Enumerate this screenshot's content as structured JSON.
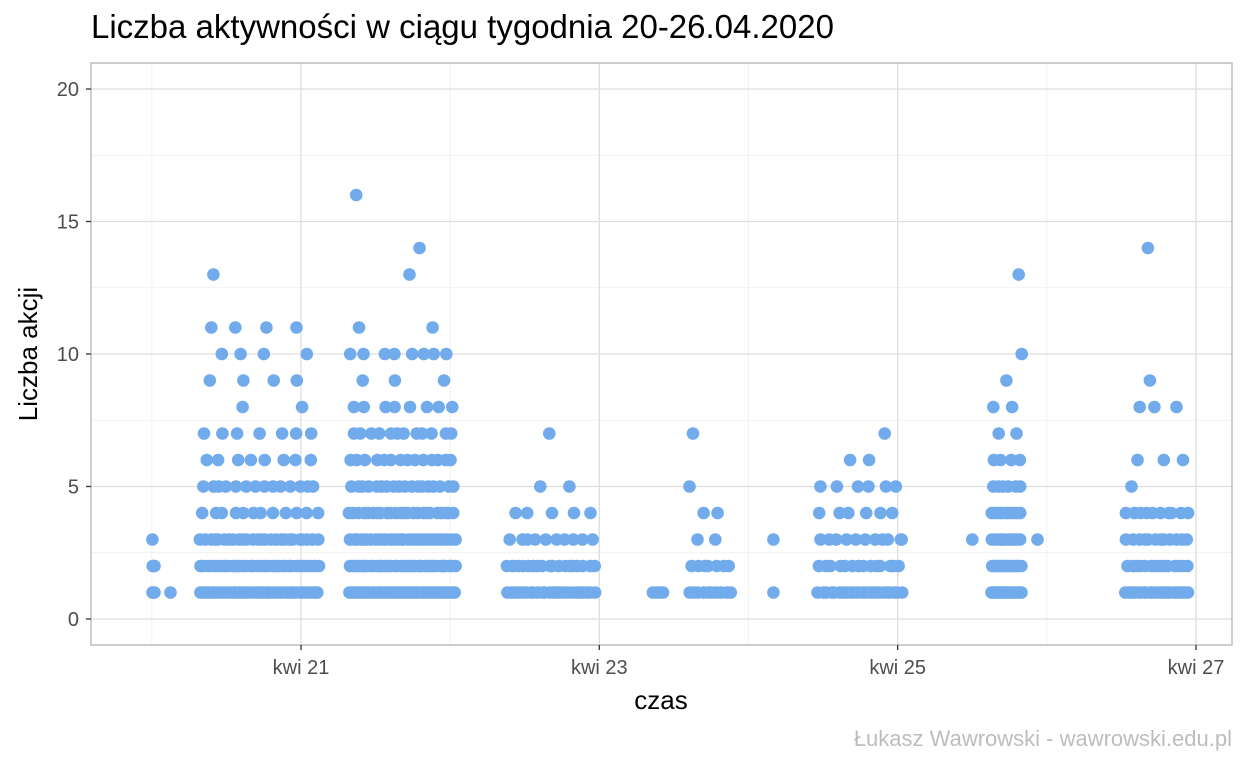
{
  "chart_data": {
    "type": "scatter",
    "title": "Liczba aktywności w ciągu tygodnia 20-26.04.2020",
    "xlabel": "czas",
    "ylabel": "Liczba akcji",
    "caption": "Łukasz Wawrowski - wawrowski.edu.pl",
    "color": "#72abec",
    "grid": true,
    "xlim": [
      "2020-04-19T14:00",
      "2020-04-26T23:00"
    ],
    "ylim": [
      -1,
      21
    ],
    "xticks": [
      {
        "value": "2020-04-21T00:00",
        "label": "kwi 21"
      },
      {
        "value": "2020-04-23T00:00",
        "label": "kwi 23"
      },
      {
        "value": "2020-04-25T00:00",
        "label": "kwi 25"
      },
      {
        "value": "2020-04-27T00:00",
        "label": "kwi 27"
      }
    ],
    "yticks": [
      0,
      5,
      10,
      15,
      20
    ],
    "clusters": [
      {
        "start": "2020-04-20T00:00",
        "end": "2020-04-20T00:30",
        "counts": [
          [
            1,
            3
          ],
          [
            2,
            3
          ],
          [
            3,
            1
          ]
        ]
      },
      {
        "start": "2020-04-20T03:00",
        "end": "2020-04-20T03:00",
        "counts": [
          [
            1,
            1
          ]
        ]
      },
      {
        "start": "2020-04-20T07:30",
        "end": "2020-04-21T03:00",
        "counts": [
          [
            1,
            40
          ],
          [
            2,
            34
          ],
          [
            3,
            26
          ],
          [
            4,
            12
          ],
          [
            5,
            14
          ],
          [
            6,
            8
          ],
          [
            7,
            7
          ],
          [
            8,
            2
          ],
          [
            9,
            4
          ],
          [
            10,
            4
          ],
          [
            11,
            4
          ],
          [
            13,
            1
          ]
        ]
      },
      {
        "start": "2020-04-21T07:30",
        "end": "2020-04-22T01:00",
        "counts": [
          [
            1,
            42
          ],
          [
            2,
            36
          ],
          [
            3,
            30
          ],
          [
            4,
            24
          ],
          [
            5,
            18
          ],
          [
            6,
            14
          ],
          [
            7,
            12
          ],
          [
            8,
            8
          ],
          [
            9,
            3
          ],
          [
            10,
            8
          ],
          [
            11,
            2
          ],
          [
            13,
            1
          ],
          [
            14,
            1
          ],
          [
            16,
            1
          ]
        ]
      },
      {
        "start": "2020-04-22T09:00",
        "end": "2020-04-22T23:30",
        "counts": [
          [
            1,
            24
          ],
          [
            2,
            18
          ],
          [
            3,
            10
          ],
          [
            4,
            5
          ],
          [
            5,
            2
          ],
          [
            7,
            1
          ]
        ]
      },
      {
        "start": "2020-04-23T08:30",
        "end": "2020-04-23T10:30",
        "counts": [
          [
            1,
            4
          ]
        ]
      },
      {
        "start": "2020-04-23T14:00",
        "end": "2020-04-23T21:30",
        "counts": [
          [
            1,
            10
          ],
          [
            2,
            7
          ],
          [
            3,
            2
          ],
          [
            4,
            2
          ],
          [
            5,
            1
          ],
          [
            7,
            1
          ]
        ]
      },
      {
        "start": "2020-04-24T04:00",
        "end": "2020-04-24T04:00",
        "counts": [
          [
            1,
            1
          ],
          [
            3,
            1
          ]
        ]
      },
      {
        "start": "2020-04-24T11:00",
        "end": "2020-04-25T01:00",
        "counts": [
          [
            1,
            22
          ],
          [
            2,
            14
          ],
          [
            3,
            10
          ],
          [
            4,
            6
          ],
          [
            5,
            6
          ],
          [
            6,
            2
          ],
          [
            7,
            1
          ]
        ]
      },
      {
        "start": "2020-04-25T00:30",
        "end": "2020-04-25T00:30",
        "counts": [
          [
            3,
            1
          ]
        ]
      },
      {
        "start": "2020-04-25T12:00",
        "end": "2020-04-25T12:00",
        "counts": [
          [
            3,
            1
          ]
        ]
      },
      {
        "start": "2020-04-25T15:00",
        "end": "2020-04-25T20:00",
        "counts": [
          [
            1,
            18
          ],
          [
            2,
            14
          ],
          [
            3,
            12
          ],
          [
            4,
            10
          ],
          [
            5,
            6
          ],
          [
            6,
            4
          ],
          [
            7,
            2
          ],
          [
            8,
            2
          ],
          [
            9,
            1
          ],
          [
            10,
            1
          ],
          [
            13,
            1
          ]
        ]
      },
      {
        "start": "2020-04-25T22:30",
        "end": "2020-04-25T22:30",
        "counts": [
          [
            3,
            1
          ]
        ]
      },
      {
        "start": "2020-04-26T12:30",
        "end": "2020-04-26T23:00",
        "counts": [
          [
            1,
            22
          ],
          [
            2,
            14
          ],
          [
            3,
            12
          ],
          [
            4,
            10
          ],
          [
            5,
            1
          ],
          [
            6,
            3
          ],
          [
            8,
            3
          ],
          [
            9,
            1
          ],
          [
            14,
            1
          ]
        ]
      }
    ]
  }
}
